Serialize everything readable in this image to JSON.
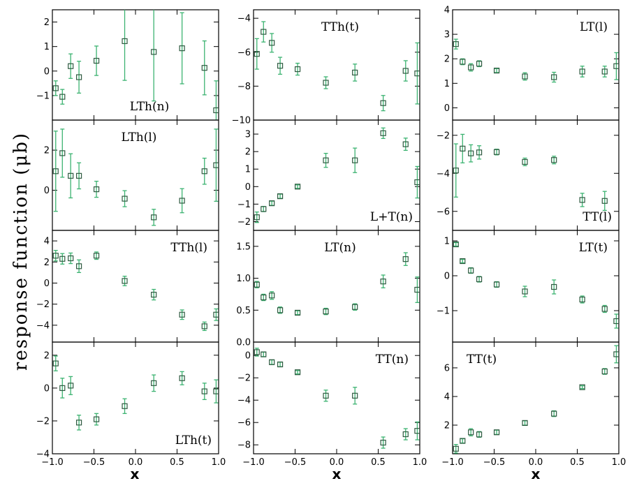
{
  "figure": {
    "ylabel": "response function (μb)",
    "xlabel": "x",
    "colors": {
      "marker": "#2e5a40",
      "errorbar": "#3cb371",
      "axes": "#000000"
    }
  },
  "chart_data": [
    {
      "type": "scatter",
      "panel": "LTh(n)",
      "label": "LTh(n)",
      "label_pos": "bottom-middle",
      "xlim": [
        -1,
        1
      ],
      "ylim": [
        -2,
        2.5
      ],
      "yticks": [
        -1,
        0,
        1,
        2
      ],
      "yticklabels": [
        "−1",
        "0",
        "1",
        "2"
      ],
      "x": [
        -0.96,
        -0.88,
        -0.78,
        -0.68,
        -0.47,
        -0.13,
        0.22,
        0.56,
        0.83,
        0.97
      ],
      "y": [
        -0.7,
        -1.05,
        0.2,
        -0.25,
        0.42,
        1.22,
        0.78,
        0.93,
        0.13,
        -1.6
      ],
      "yerr": [
        0.3,
        0.3,
        0.5,
        0.65,
        0.6,
        1.6,
        2.0,
        1.45,
        1.1,
        1.2
      ]
    },
    {
      "type": "scatter",
      "panel": "TTh(t)",
      "label": "TTh(t)",
      "label_pos": "top-middle",
      "xlim": [
        -1,
        1
      ],
      "ylim": [
        -10,
        -3.5
      ],
      "yticks": [
        -10,
        -8,
        -6,
        -4
      ],
      "yticklabels": [
        "−10",
        "−8",
        "−6",
        "−4"
      ],
      "x": [
        -0.96,
        -0.88,
        -0.78,
        -0.68,
        -0.47,
        -0.13,
        0.22,
        0.56,
        0.83,
        0.97
      ],
      "y": [
        -6.1,
        -4.8,
        -5.45,
        -6.8,
        -7.0,
        -7.8,
        -7.2,
        -9.0,
        -7.1,
        -7.25
      ],
      "yerr": [
        0.9,
        0.6,
        0.55,
        0.5,
        0.35,
        0.35,
        0.5,
        0.45,
        0.6,
        1.8
      ]
    },
    {
      "type": "scatter",
      "panel": "LT(l)",
      "label": "LT(l)",
      "label_pos": "top-right",
      "xlim": [
        -1,
        1
      ],
      "ylim": [
        -0.5,
        4
      ],
      "yticks": [
        0,
        1,
        2,
        3,
        4
      ],
      "yticklabels": [
        "0",
        "1",
        "2",
        "3",
        "4"
      ],
      "x": [
        -0.96,
        -0.88,
        -0.78,
        -0.68,
        -0.47,
        -0.13,
        0.22,
        0.56,
        0.83,
        0.97
      ],
      "y": [
        2.6,
        1.88,
        1.65,
        1.8,
        1.52,
        1.28,
        1.25,
        1.48,
        1.48,
        1.7
      ],
      "yerr": [
        0.2,
        0.12,
        0.15,
        0.12,
        0.08,
        0.15,
        0.2,
        0.22,
        0.22,
        0.55
      ]
    },
    {
      "type": "scatter",
      "panel": "LTh(l)",
      "label": "LTh(l)",
      "label_pos": "top-middle",
      "xlim": [
        -1,
        1
      ],
      "ylim": [
        -2,
        3.5
      ],
      "yticks": [
        0,
        2
      ],
      "yticklabels": [
        "0",
        "2"
      ],
      "x": [
        -0.96,
        -0.88,
        -0.78,
        -0.68,
        -0.47,
        -0.13,
        0.22,
        0.56,
        0.83,
        0.97
      ],
      "y": [
        0.95,
        1.85,
        0.72,
        0.72,
        0.05,
        -0.42,
        -1.35,
        -0.52,
        0.95,
        1.25
      ],
      "yerr": [
        2.0,
        1.2,
        1.1,
        0.65,
        0.4,
        0.4,
        0.4,
        0.6,
        0.65,
        1.8
      ]
    },
    {
      "type": "scatter",
      "panel": "L+T(n)",
      "label": "L+T(n)",
      "label_pos": "bottom-right",
      "xlim": [
        -1,
        1
      ],
      "ylim": [
        -2.5,
        3.8
      ],
      "yticks": [
        -2,
        -1,
        0,
        1,
        2,
        3
      ],
      "yticklabels": [
        "−2",
        "−1",
        "0",
        "1",
        "2",
        "3"
      ],
      "x": [
        -0.96,
        -0.88,
        -0.78,
        -0.68,
        -0.47,
        -0.13,
        0.22,
        0.56,
        0.83,
        0.97
      ],
      "y": [
        -1.75,
        -1.28,
        -0.95,
        -0.55,
        0.0,
        1.5,
        1.5,
        3.05,
        2.42,
        0.25
      ],
      "yerr": [
        0.3,
        0.15,
        0.12,
        0.12,
        0.1,
        0.4,
        0.7,
        0.3,
        0.35,
        0.9
      ]
    },
    {
      "type": "scatter",
      "panel": "TT(l)",
      "label": "TT(l)",
      "label_pos": "bottom-right",
      "xlim": [
        -1,
        1
      ],
      "ylim": [
        -7,
        -1.2
      ],
      "yticks": [
        -6,
        -4,
        -2
      ],
      "yticklabels": [
        "−6",
        "−4",
        "−2"
      ],
      "x": [
        -0.96,
        -0.88,
        -0.78,
        -0.68,
        -0.47,
        -0.13,
        0.22,
        0.56,
        0.83
      ],
      "y": [
        -3.85,
        -2.7,
        -2.95,
        -2.9,
        -2.88,
        -3.4,
        -3.3,
        -5.4,
        -5.45
      ],
      "yerr": [
        1.4,
        0.75,
        0.45,
        0.35,
        0.15,
        0.2,
        0.2,
        0.35,
        0.5
      ]
    },
    {
      "type": "scatter",
      "panel": "TTh(l)",
      "label": "TTh(l)",
      "label_pos": "top-right",
      "xlim": [
        -1,
        1
      ],
      "ylim": [
        -5.6,
        5
      ],
      "yticks": [
        -4,
        -2,
        0,
        2,
        4
      ],
      "yticklabels": [
        "−4",
        "−2",
        "0",
        "2",
        "4"
      ],
      "x": [
        -0.96,
        -0.88,
        -0.78,
        -0.68,
        -0.47,
        -0.13,
        0.22,
        0.56,
        0.83,
        0.97
      ],
      "y": [
        2.6,
        2.3,
        2.35,
        1.6,
        2.6,
        0.2,
        -1.1,
        -3.0,
        -4.1,
        -3.0
      ],
      "yerr": [
        0.5,
        0.5,
        0.5,
        0.6,
        0.35,
        0.45,
        0.5,
        0.45,
        0.4,
        0.55
      ]
    },
    {
      "type": "scatter",
      "panel": "LT(n)",
      "label": "LT(n)",
      "label_pos": "top-middle",
      "xlim": [
        -1,
        1
      ],
      "ylim": [
        0,
        1.75
      ],
      "yticks": [
        0,
        0.5,
        1.0,
        1.5
      ],
      "yticklabels": [
        "0.0",
        "0.5",
        "1.0",
        "1.5"
      ],
      "x": [
        -0.96,
        -0.88,
        -0.78,
        -0.68,
        -0.47,
        -0.13,
        0.22,
        0.56,
        0.83,
        0.97
      ],
      "y": [
        0.9,
        0.7,
        0.73,
        0.5,
        0.46,
        0.48,
        0.55,
        0.95,
        1.3,
        0.82
      ],
      "yerr": [
        0.05,
        0.05,
        0.06,
        0.05,
        0.03,
        0.05,
        0.05,
        0.1,
        0.1,
        0.2
      ]
    },
    {
      "type": "scatter",
      "panel": "LT(t)",
      "label": "LT(t)",
      "label_pos": "top-right",
      "xlim": [
        -1,
        1
      ],
      "ylim": [
        -1.9,
        1.3
      ],
      "yticks": [
        -1,
        0,
        1
      ],
      "yticklabels": [
        "−1",
        "0",
        "1"
      ],
      "x": [
        -0.96,
        -0.88,
        -0.78,
        -0.68,
        -0.47,
        -0.13,
        0.22,
        0.56,
        0.83,
        0.97
      ],
      "y": [
        0.9,
        0.42,
        0.15,
        -0.1,
        -0.25,
        -0.45,
        -0.32,
        -0.68,
        -0.95,
        -1.3
      ],
      "yerr": [
        0.05,
        0.05,
        0.08,
        0.08,
        0.08,
        0.15,
        0.2,
        0.1,
        0.1,
        0.2
      ]
    },
    {
      "type": "scatter",
      "panel": "LTh(t)",
      "label": "LTh(t)",
      "label_pos": "bottom-right",
      "xlim": [
        -1,
        1
      ],
      "ylim": [
        -4,
        2.8
      ],
      "yticks": [
        -4,
        -2,
        0,
        2
      ],
      "yticklabels": [
        "−4",
        "−2",
        "0",
        "2"
      ],
      "x": [
        -0.96,
        -0.88,
        -0.78,
        -0.68,
        -0.47,
        -0.13,
        0.22,
        0.56,
        0.83,
        0.97
      ],
      "y": [
        1.5,
        0.0,
        0.15,
        -2.1,
        -1.9,
        -1.1,
        0.3,
        0.6,
        -0.2,
        -0.2
      ],
      "yerr": [
        0.45,
        0.6,
        0.55,
        0.45,
        0.35,
        0.45,
        0.5,
        0.4,
        0.5,
        0.7
      ]
    },
    {
      "type": "scatter",
      "panel": "TT(n)",
      "label": "TT(n)",
      "label_pos": "top-right",
      "xlim": [
        -1,
        1
      ],
      "ylim": [
        -8.8,
        1.2
      ],
      "yticks": [
        -8,
        -6,
        -4,
        -2,
        0
      ],
      "yticklabels": [
        "−8",
        "−6",
        "−4",
        "−2",
        "0"
      ],
      "x": [
        -0.96,
        -0.88,
        -0.78,
        -0.68,
        -0.47,
        -0.13,
        0.22,
        0.56,
        0.83,
        0.97
      ],
      "y": [
        0.3,
        0.1,
        -0.6,
        -0.8,
        -1.5,
        -3.6,
        -3.6,
        -7.8,
        -7.05,
        -6.75
      ],
      "yerr": [
        0.35,
        0.2,
        0.2,
        0.2,
        0.15,
        0.5,
        0.75,
        0.5,
        0.5,
        0.8
      ]
    },
    {
      "type": "scatter",
      "panel": "TT(t)",
      "label": "TT(t)",
      "label_pos": "top-left",
      "xlim": [
        -1,
        1
      ],
      "ylim": [
        0,
        7.8
      ],
      "yticks": [
        2,
        4,
        6
      ],
      "yticklabels": [
        "2",
        "4",
        "6"
      ],
      "x": [
        -0.96,
        -0.88,
        -0.78,
        -0.68,
        -0.47,
        -0.13,
        0.22,
        0.56,
        0.83,
        0.97
      ],
      "y": [
        0.35,
        0.9,
        1.5,
        1.35,
        1.5,
        2.15,
        2.8,
        4.65,
        5.75,
        6.95
      ],
      "yerr": [
        0.3,
        0.15,
        0.25,
        0.2,
        0.15,
        0.15,
        0.2,
        0.1,
        0.2,
        0.6
      ]
    }
  ],
  "xaxis": {
    "ticks": [
      -1.0,
      -0.5,
      0.0,
      0.5,
      1.0
    ],
    "ticklabels": [
      "−1.0",
      "−0.5",
      "0.0",
      "0.5",
      "1.0"
    ]
  }
}
